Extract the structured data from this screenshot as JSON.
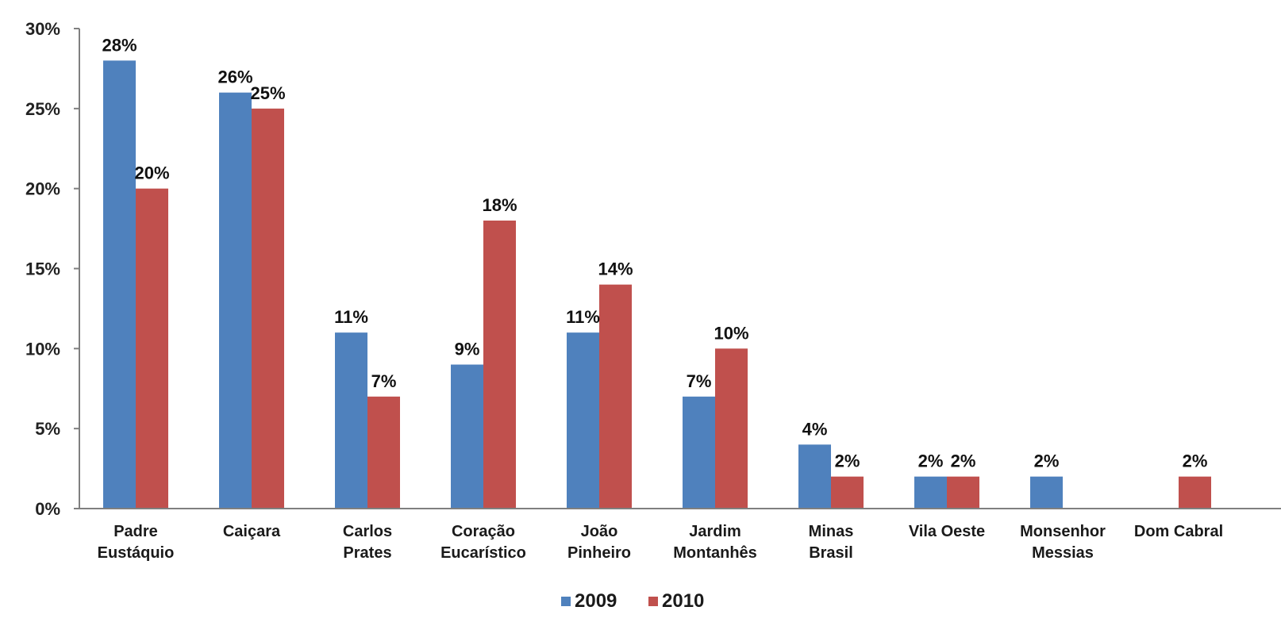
{
  "chart_data": {
    "type": "bar",
    "categories": [
      [
        "Padre",
        "Eustáquio"
      ],
      [
        "Caiçara"
      ],
      [
        "Carlos",
        "Prates"
      ],
      [
        "Coração",
        "Eucarístico"
      ],
      [
        "João",
        "Pinheiro"
      ],
      [
        "Jardim",
        "Montanhês"
      ],
      [
        "Minas",
        "Brasil"
      ],
      [
        "Vila Oeste"
      ],
      [
        "Monsenhor",
        "Messias"
      ],
      [
        "Dom Cabral"
      ]
    ],
    "series": [
      {
        "name": "2009",
        "color": "#4f81bd",
        "values": [
          28,
          26,
          11,
          9,
          11,
          7,
          4,
          2,
          2,
          null
        ],
        "labels": [
          "28%",
          "26%",
          "11%",
          "9%",
          "11%",
          "7%",
          "4%",
          "2%",
          "2%",
          ""
        ]
      },
      {
        "name": "2010",
        "color": "#c0504d",
        "values": [
          20,
          25,
          7,
          18,
          14,
          10,
          2,
          2,
          null,
          2
        ],
        "labels": [
          "20%",
          "25%",
          "7%",
          "18%",
          "14%",
          "10%",
          "2%",
          "2%",
          "",
          "2%"
        ]
      }
    ],
    "y_ticks": [
      0,
      5,
      10,
      15,
      20,
      25,
      30
    ],
    "y_tick_labels": [
      "0%",
      "5%",
      "10%",
      "15%",
      "20%",
      "25%",
      "30%"
    ],
    "ylim": [
      0,
      30
    ],
    "legend_position": "bottom-center",
    "title": "",
    "xlabel": "",
    "ylabel": ""
  }
}
